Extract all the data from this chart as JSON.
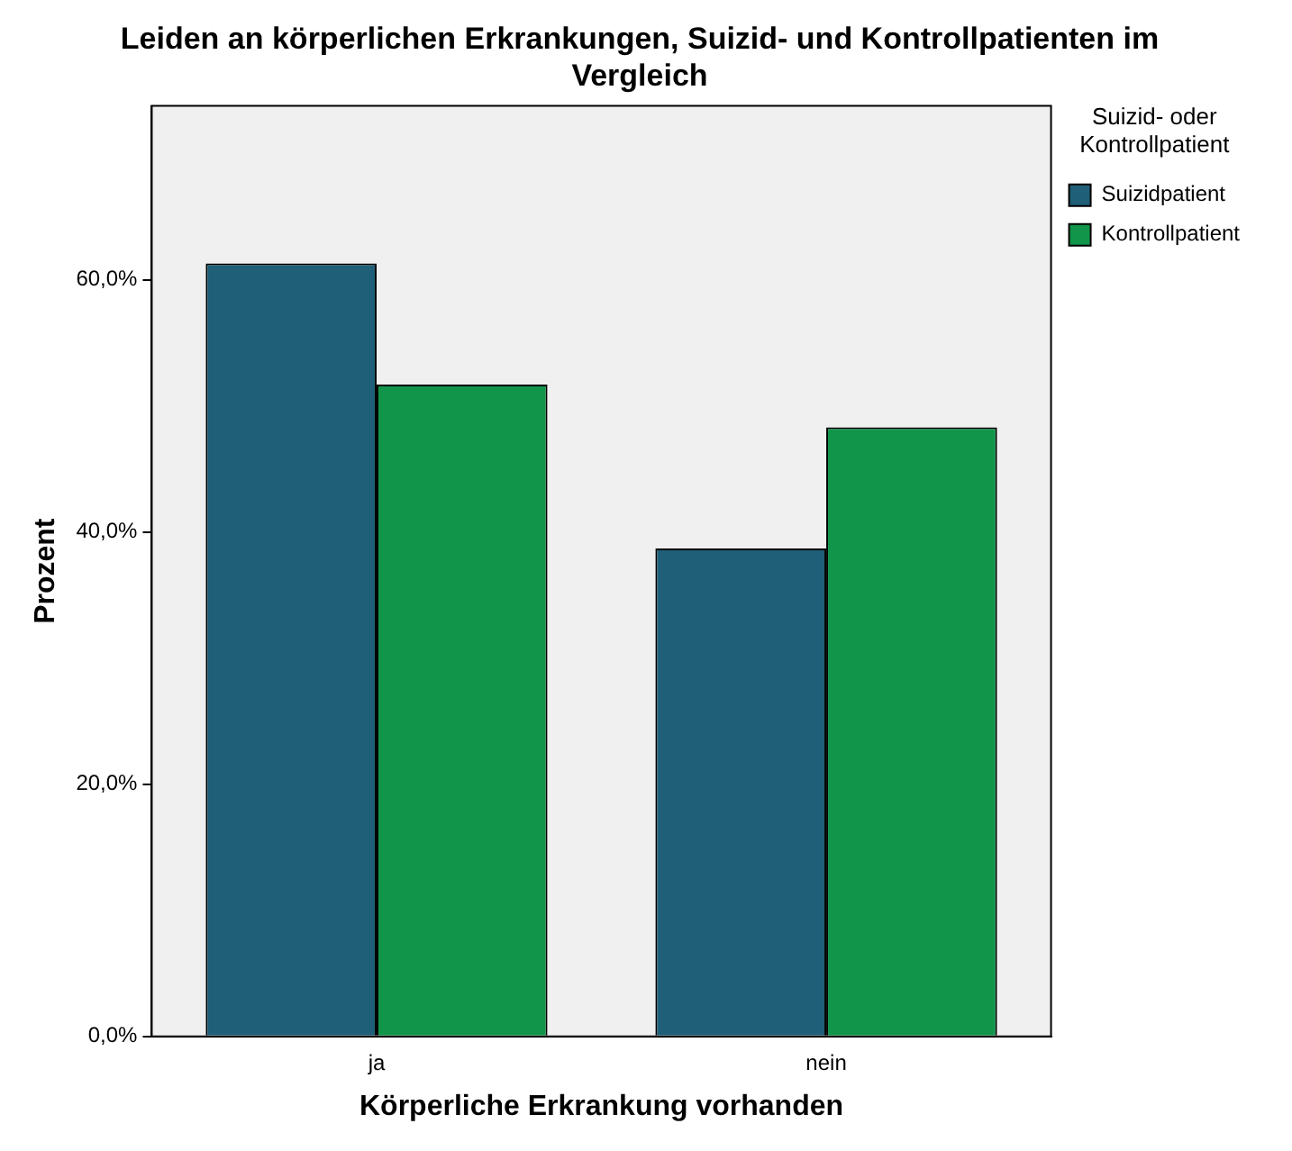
{
  "chart_data": {
    "type": "bar",
    "title": "Leiden an körperlichen Erkrankungen, Suizid- und Kontrollpatienten im Vergleich",
    "xlabel": "Körperliche Erkrankung vorhanden",
    "ylabel": "Prozent",
    "legend_title": "Suizid- oder Kontrollpatient",
    "categories": [
      "ja",
      "nein"
    ],
    "series": [
      {
        "name": "Suizidpatient",
        "color": "#1f5f78",
        "values": [
          61.3,
          38.7
        ]
      },
      {
        "name": "Kontrollpatient",
        "color": "#11954a",
        "values": [
          51.7,
          48.3
        ]
      }
    ],
    "ylim": [
      0,
      73.8
    ],
    "yticks": [
      {
        "value": 0,
        "label": "0,0%"
      },
      {
        "value": 20,
        "label": "20,0%"
      },
      {
        "value": 40,
        "label": "40,0%"
      },
      {
        "value": 60,
        "label": "60,0%"
      }
    ],
    "grid": false,
    "legend": "right"
  }
}
